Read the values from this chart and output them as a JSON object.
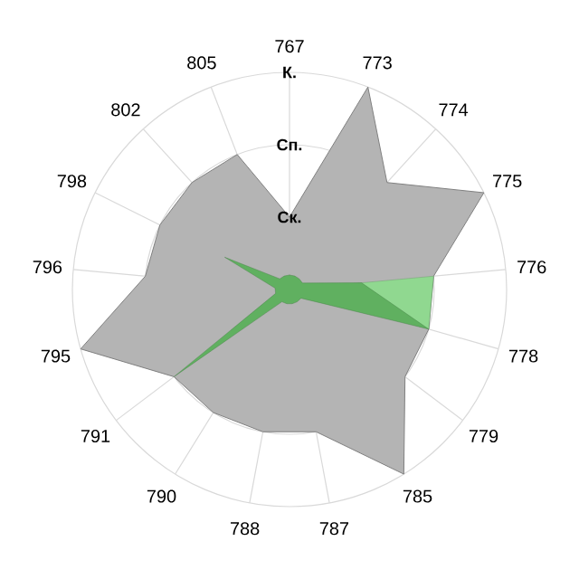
{
  "chart_data": {
    "type": "radar",
    "categories": [
      "767",
      "773",
      "774",
      "775",
      "776",
      "778",
      "779",
      "785",
      "787",
      "788",
      "790",
      "791",
      "795",
      "796",
      "798",
      "802",
      "805"
    ],
    "series": [
      {
        "color": "#b4b4b4",
        "values": [
          1,
          3,
          2,
          3,
          2,
          2,
          2,
          3,
          2,
          2,
          2,
          2,
          3,
          2,
          2,
          2,
          2
        ]
      },
      {
        "color": "#90d890",
        "values": [
          0,
          0,
          0,
          0,
          2,
          2,
          0,
          0,
          0,
          0,
          0,
          0,
          0,
          0,
          0,
          0,
          0
        ]
      },
      {
        "color": "#60b060",
        "values": [
          0.2,
          0.2,
          0.2,
          0.2,
          1,
          2,
          0.2,
          0.2,
          0.2,
          0.2,
          0.2,
          2,
          0.2,
          0.2,
          1,
          0.2,
          0.2
        ]
      }
    ],
    "ylim": [
      0,
      3
    ],
    "yticks": [
      {
        "value": 1,
        "label": "Ск."
      },
      {
        "value": 2,
        "label": "Сп."
      },
      {
        "value": 3,
        "label": "К."
      }
    ],
    "grid": true
  }
}
